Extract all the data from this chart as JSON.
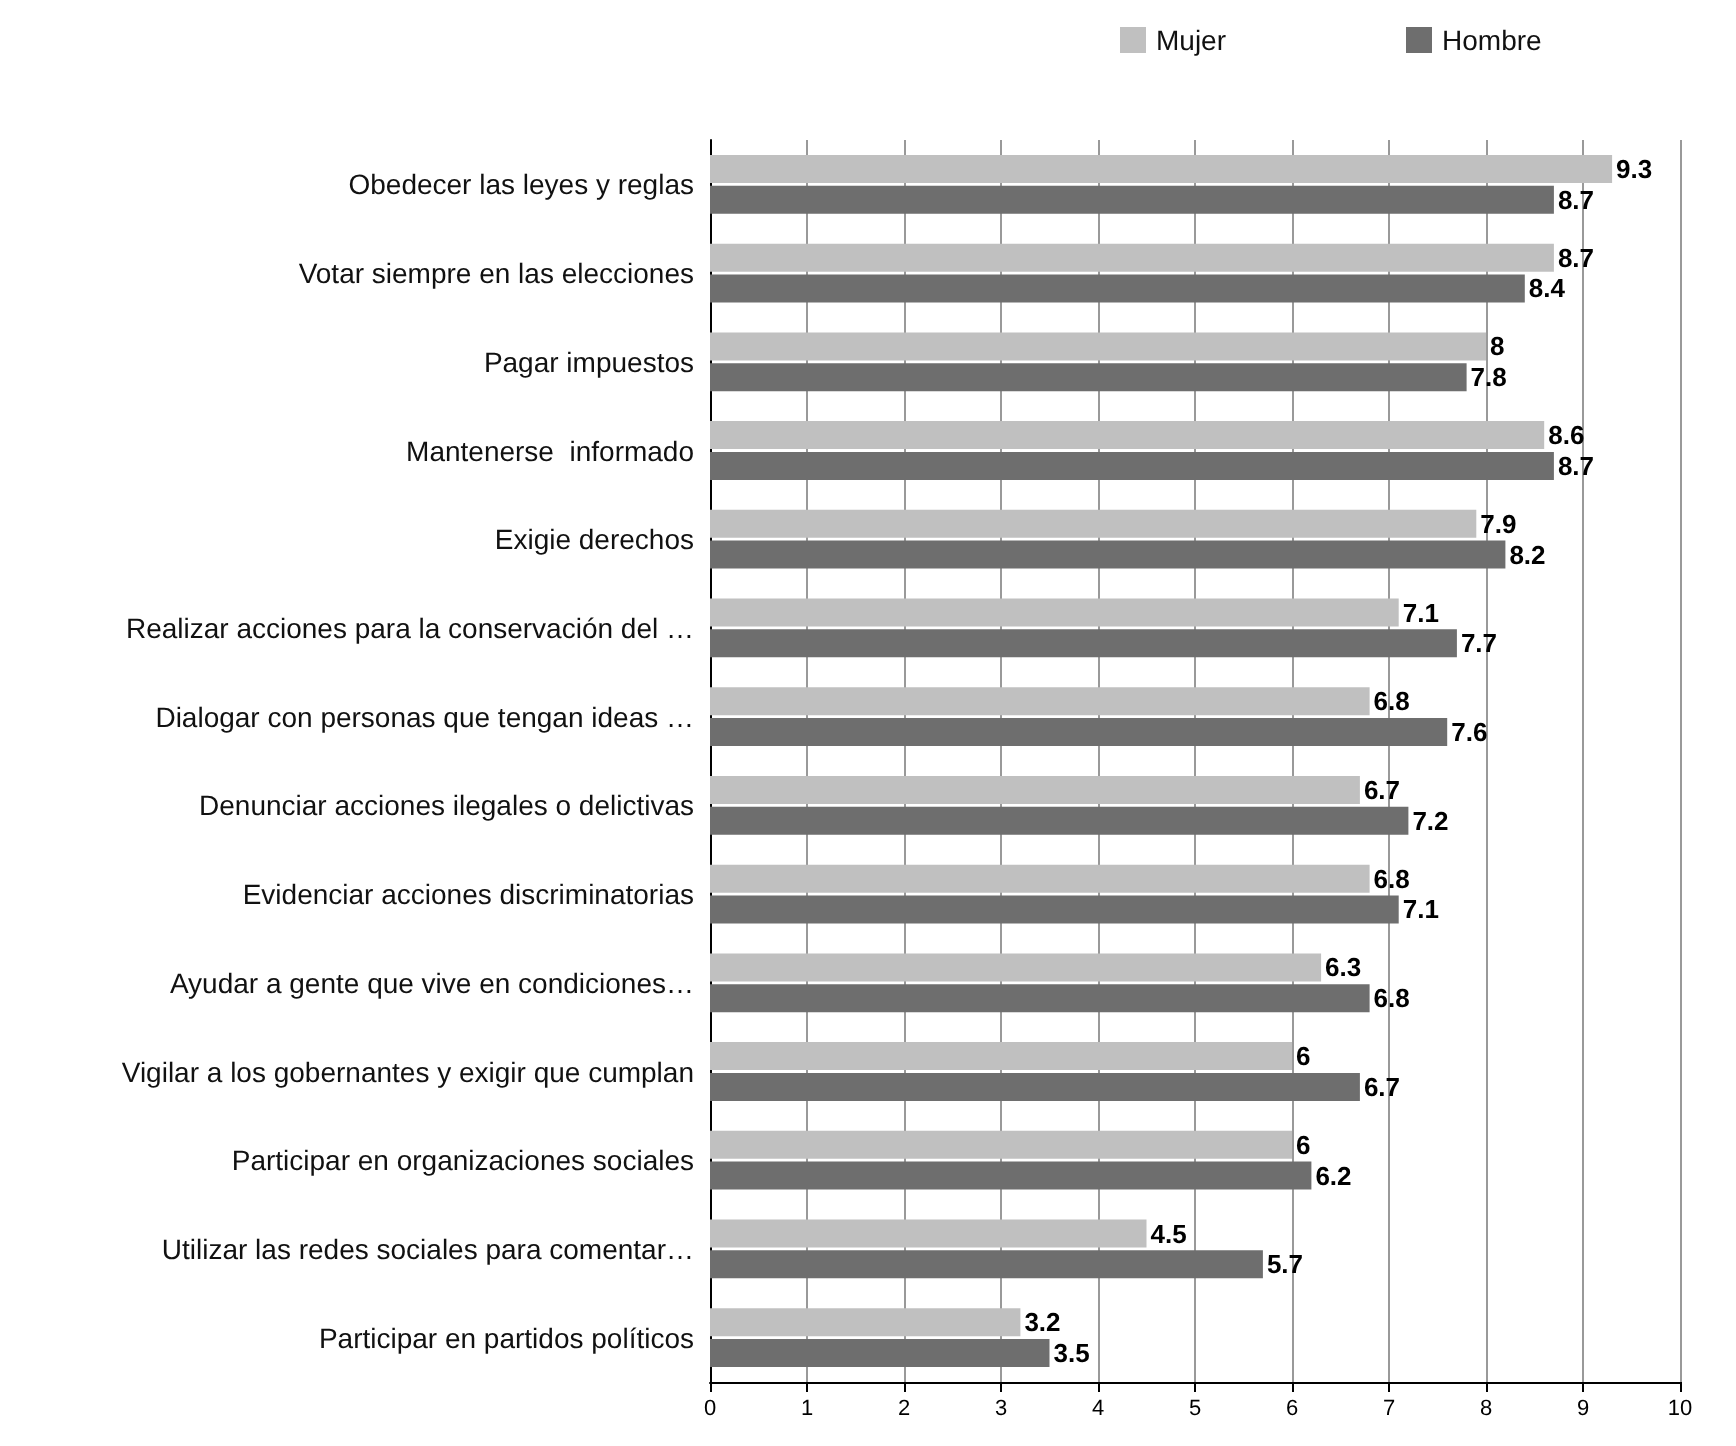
{
  "chart_data": {
    "type": "bar",
    "orientation": "horizontal",
    "categories": [
      "Obedecer las leyes y reglas",
      "Votar siempre en las elecciones",
      "Pagar impuestos",
      "Mantenerse  informado",
      "Exigie derechos",
      "Realizar acciones para la conservación del …",
      "Dialogar con personas que tengan ideas …",
      "Denunciar acciones ilegales o delictivas",
      "Evidenciar acciones discriminatorias",
      "Ayudar a gente que vive en condiciones…",
      "Vigilar a los gobernantes y exigir que cumplan",
      "Participar en organizaciones sociales",
      "Utilizar las redes sociales para comentar…",
      "Participar en partidos políticos"
    ],
    "series": [
      {
        "name": "Mujer",
        "color": "#c0c0c0",
        "values": [
          9.3,
          8.7,
          8,
          8.6,
          7.9,
          7.1,
          6.8,
          6.7,
          6.8,
          6.3,
          6,
          6,
          4.5,
          3.2
        ]
      },
      {
        "name": "Hombre",
        "color": "#6e6e6e",
        "values": [
          8.7,
          8.4,
          7.8,
          8.7,
          8.2,
          7.7,
          7.6,
          7.2,
          7.1,
          6.8,
          6.7,
          6.2,
          5.7,
          3.5
        ]
      }
    ],
    "xlim": [
      0,
      10
    ],
    "xticks": [
      0,
      1,
      2,
      3,
      4,
      5,
      6,
      7,
      8,
      9,
      10
    ],
    "grid": "x",
    "legend": "top",
    "data_labels": true
  }
}
